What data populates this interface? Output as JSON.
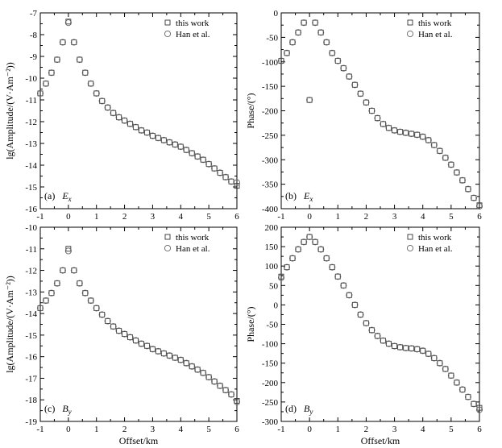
{
  "chart_data": [
    {
      "type": "scatter",
      "panel_label": "(a)",
      "field_letter": "E",
      "field_sub": "x",
      "ylabel": "lg(Amplitude/(V·Am⁻²))",
      "xlabel": "",
      "xlim": [
        -1,
        6
      ],
      "ylim": [
        -16,
        -7
      ],
      "xticks": [
        -1,
        0,
        1,
        2,
        3,
        4,
        5,
        6
      ],
      "yticks": [
        -16,
        -15,
        -14,
        -13,
        -12,
        -11,
        -10,
        -9,
        -8,
        -7
      ],
      "legend_position": "top-right",
      "series": [
        {
          "name": "this work",
          "marker": "square",
          "x": [
            -1.0,
            -0.8,
            -0.6,
            -0.4,
            -0.2,
            0.0,
            0.2,
            0.4,
            0.6,
            0.8,
            1.0,
            1.2,
            1.4,
            1.6,
            1.8,
            2.0,
            2.2,
            2.4,
            2.6,
            2.8,
            3.0,
            3.2,
            3.4,
            3.6,
            3.8,
            4.0,
            4.2,
            4.4,
            4.6,
            4.8,
            5.0,
            5.2,
            5.4,
            5.6,
            5.8,
            6.0
          ],
          "y": [
            -10.7,
            -10.25,
            -9.75,
            -9.15,
            -8.35,
            -7.4,
            -8.35,
            -9.15,
            -9.75,
            -10.25,
            -10.7,
            -11.05,
            -11.35,
            -11.6,
            -11.8,
            -11.95,
            -12.1,
            -12.25,
            -12.4,
            -12.5,
            -12.65,
            -12.75,
            -12.85,
            -12.95,
            -13.05,
            -13.15,
            -13.3,
            -13.45,
            -13.6,
            -13.75,
            -13.95,
            -14.15,
            -14.35,
            -14.55,
            -14.75,
            -14.95
          ]
        },
        {
          "name": "Han et al.",
          "marker": "circle",
          "x": [
            -1.0,
            -0.8,
            -0.6,
            -0.4,
            -0.2,
            0.0,
            0.2,
            0.4,
            0.6,
            0.8,
            1.0,
            1.2,
            1.4,
            1.6,
            1.8,
            2.0,
            2.2,
            2.4,
            2.6,
            2.8,
            3.0,
            3.2,
            3.4,
            3.6,
            3.8,
            4.0,
            4.2,
            4.4,
            4.6,
            4.8,
            5.0,
            5.2,
            5.4,
            5.6,
            5.8,
            6.0
          ],
          "y": [
            -10.7,
            -10.25,
            -9.75,
            -9.15,
            -8.35,
            -7.45,
            -8.35,
            -9.15,
            -9.75,
            -10.25,
            -10.7,
            -11.05,
            -11.35,
            -11.6,
            -11.8,
            -11.95,
            -12.1,
            -12.25,
            -12.4,
            -12.5,
            -12.65,
            -12.75,
            -12.85,
            -12.95,
            -13.05,
            -13.15,
            -13.3,
            -13.45,
            -13.6,
            -13.75,
            -13.95,
            -14.15,
            -14.35,
            -14.55,
            -14.75,
            -14.8
          ]
        }
      ]
    },
    {
      "type": "scatter",
      "panel_label": "(b)",
      "field_letter": "E",
      "field_sub": "x",
      "ylabel": "Phase/(°)",
      "xlabel": "",
      "xlim": [
        -1,
        6
      ],
      "ylim": [
        -400,
        0
      ],
      "xticks": [
        -1,
        0,
        1,
        2,
        3,
        4,
        5,
        6
      ],
      "yticks": [
        -400,
        -350,
        -300,
        -250,
        -200,
        -150,
        -100,
        -50,
        0
      ],
      "legend_position": "top-right",
      "series": [
        {
          "name": "this work",
          "marker": "square",
          "x": [
            -1.0,
            -0.8,
            -0.6,
            -0.4,
            -0.2,
            0.0,
            0.2,
            0.4,
            0.6,
            0.8,
            1.0,
            1.2,
            1.4,
            1.6,
            1.8,
            2.0,
            2.2,
            2.4,
            2.6,
            2.8,
            3.0,
            3.2,
            3.4,
            3.6,
            3.8,
            4.0,
            4.2,
            4.4,
            4.6,
            4.8,
            5.0,
            5.2,
            5.4,
            5.6,
            5.8,
            6.0
          ],
          "y": [
            -98,
            -82,
            -60,
            -40,
            -20,
            -178,
            -20,
            -40,
            -60,
            -82,
            -98,
            -113,
            -130,
            -147,
            -165,
            -183,
            -200,
            -215,
            -227,
            -235,
            -240,
            -243,
            -245,
            -247,
            -249,
            -253,
            -260,
            -270,
            -282,
            -296,
            -310,
            -326,
            -342,
            -360,
            -378,
            -393
          ]
        },
        {
          "name": "Han et al.",
          "marker": "circle",
          "x": [
            -1.0,
            -0.8,
            -0.6,
            -0.4,
            -0.2,
            0.0,
            0.2,
            0.4,
            0.6,
            0.8,
            1.0,
            1.2,
            1.4,
            1.6,
            1.8,
            2.0,
            2.2,
            2.4,
            2.6,
            2.8,
            3.0,
            3.2,
            3.4,
            3.6,
            3.8,
            4.0,
            4.2,
            4.4,
            4.6,
            4.8,
            5.0,
            5.2,
            5.4,
            5.6,
            5.8,
            6.0
          ],
          "y": [
            -98,
            -82,
            -60,
            -40,
            -20,
            -178,
            -20,
            -40,
            -60,
            -82,
            -98,
            -113,
            -130,
            -147,
            -165,
            -183,
            -200,
            -215,
            -227,
            -235,
            -240,
            -243,
            -245,
            -247,
            -249,
            -253,
            -260,
            -270,
            -282,
            -296,
            -310,
            -326,
            -342,
            -360,
            -378,
            -395
          ]
        }
      ]
    },
    {
      "type": "scatter",
      "panel_label": "(c)",
      "field_letter": "B",
      "field_sub": "y",
      "ylabel": "lg(Amplitude/(V·Am⁻²))",
      "xlabel": "Offset/km",
      "xlim": [
        -1,
        6
      ],
      "ylim": [
        -19,
        -10
      ],
      "xticks": [
        -1,
        0,
        1,
        2,
        3,
        4,
        5,
        6
      ],
      "yticks": [
        -19,
        -18,
        -17,
        -16,
        -15,
        -14,
        -13,
        -12,
        -11,
        -10
      ],
      "legend_position": "top-right",
      "series": [
        {
          "name": "this work",
          "marker": "square",
          "x": [
            -1.0,
            -0.8,
            -0.6,
            -0.4,
            -0.2,
            0.0,
            0.2,
            0.4,
            0.6,
            0.8,
            1.0,
            1.2,
            1.4,
            1.6,
            1.8,
            2.0,
            2.2,
            2.4,
            2.6,
            2.8,
            3.0,
            3.2,
            3.4,
            3.6,
            3.8,
            4.0,
            4.2,
            4.4,
            4.6,
            4.8,
            5.0,
            5.2,
            5.4,
            5.6,
            5.8,
            6.0
          ],
          "y": [
            -13.75,
            -13.4,
            -13.05,
            -12.6,
            -12.0,
            -11.0,
            -12.0,
            -12.6,
            -13.05,
            -13.4,
            -13.75,
            -14.05,
            -14.35,
            -14.6,
            -14.8,
            -14.95,
            -15.1,
            -15.25,
            -15.4,
            -15.5,
            -15.65,
            -15.75,
            -15.85,
            -15.95,
            -16.05,
            -16.15,
            -16.3,
            -16.45,
            -16.6,
            -16.75,
            -16.95,
            -17.15,
            -17.35,
            -17.55,
            -17.75,
            -18.05
          ]
        },
        {
          "name": "Han et al.",
          "marker": "circle",
          "x": [
            -1.0,
            -0.8,
            -0.6,
            -0.4,
            -0.2,
            0.0,
            0.2,
            0.4,
            0.6,
            0.8,
            1.0,
            1.2,
            1.4,
            1.6,
            1.8,
            2.0,
            2.2,
            2.4,
            2.6,
            2.8,
            3.0,
            3.2,
            3.4,
            3.6,
            3.8,
            4.0,
            4.2,
            4.4,
            4.6,
            4.8,
            5.0,
            5.2,
            5.4,
            5.6,
            5.8,
            6.0
          ],
          "y": [
            -13.75,
            -13.4,
            -13.05,
            -12.6,
            -12.0,
            -11.1,
            -12.0,
            -12.6,
            -13.05,
            -13.4,
            -13.75,
            -14.05,
            -14.35,
            -14.6,
            -14.8,
            -14.95,
            -15.1,
            -15.25,
            -15.4,
            -15.5,
            -15.65,
            -15.75,
            -15.85,
            -15.95,
            -16.05,
            -16.15,
            -16.3,
            -16.45,
            -16.6,
            -16.75,
            -16.95,
            -17.15,
            -17.35,
            -17.55,
            -17.75,
            -18.1
          ]
        }
      ]
    },
    {
      "type": "scatter",
      "panel_label": "(d)",
      "field_letter": "B",
      "field_sub": "y",
      "ylabel": "Phase/(°)",
      "xlabel": "Offset/km",
      "xlim": [
        -1,
        6
      ],
      "ylim": [
        -300,
        200
      ],
      "xticks": [
        -1,
        0,
        1,
        2,
        3,
        4,
        5,
        6
      ],
      "yticks": [
        -300,
        -250,
        -200,
        -150,
        -100,
        -50,
        0,
        50,
        100,
        150,
        200
      ],
      "legend_position": "top-right",
      "series": [
        {
          "name": "this work",
          "marker": "square",
          "x": [
            -1.0,
            -0.8,
            -0.6,
            -0.4,
            -0.2,
            0.0,
            0.2,
            0.4,
            0.6,
            0.8,
            1.0,
            1.2,
            1.4,
            1.6,
            1.8,
            2.0,
            2.2,
            2.4,
            2.6,
            2.8,
            3.0,
            3.2,
            3.4,
            3.6,
            3.8,
            4.0,
            4.2,
            4.4,
            4.6,
            4.8,
            5.0,
            5.2,
            5.4,
            5.6,
            5.8,
            6.0
          ],
          "y": [
            73,
            97,
            120,
            143,
            162,
            175,
            162,
            143,
            120,
            97,
            73,
            50,
            25,
            0,
            -25,
            -47,
            -65,
            -80,
            -92,
            -100,
            -106,
            -109,
            -111,
            -112,
            -114,
            -118,
            -126,
            -137,
            -150,
            -165,
            -182,
            -200,
            -218,
            -237,
            -255,
            -265
          ]
        },
        {
          "name": "Han et al.",
          "marker": "circle",
          "x": [
            -1.0,
            -0.8,
            -0.6,
            -0.4,
            -0.2,
            0.0,
            0.2,
            0.4,
            0.6,
            0.8,
            1.0,
            1.2,
            1.4,
            1.6,
            1.8,
            2.0,
            2.2,
            2.4,
            2.6,
            2.8,
            3.0,
            3.2,
            3.4,
            3.6,
            3.8,
            4.0,
            4.2,
            4.4,
            4.6,
            4.8,
            5.0,
            5.2,
            5.4,
            5.6,
            5.8,
            6.0
          ],
          "y": [
            70,
            97,
            120,
            143,
            162,
            175,
            162,
            143,
            120,
            97,
            73,
            50,
            25,
            0,
            -25,
            -47,
            -65,
            -80,
            -92,
            -100,
            -106,
            -109,
            -111,
            -112,
            -114,
            -118,
            -126,
            -137,
            -150,
            -165,
            -182,
            -200,
            -218,
            -237,
            -255,
            -270
          ]
        }
      ]
    }
  ]
}
